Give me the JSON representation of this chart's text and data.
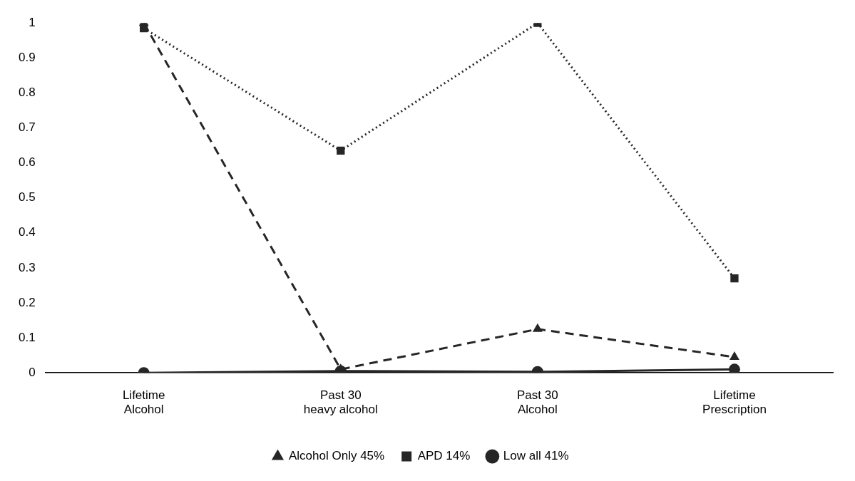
{
  "chart_data": {
    "type": "line",
    "categories": [
      "Lifetime\nAlcohol",
      "Past 30\nheavy alcohol",
      "Past 30\nAlcohol",
      "Lifetime\nPrescription"
    ],
    "series": [
      {
        "name": "Alcohol Only 45%",
        "color": "#262626",
        "values": [
          1.0,
          0.01,
          0.125,
          0.045
        ],
        "marker": "triangle",
        "line_style": "dashed"
      },
      {
        "name": "APD 14%",
        "color": "#262626",
        "values": [
          0.985,
          0.635,
          1.0,
          0.27
        ],
        "marker": "square",
        "line_style": "dotted"
      },
      {
        "name": "Low all 41%",
        "color": "#262626",
        "values": [
          0,
          0.005,
          0.003,
          0.01
        ],
        "marker": "circle",
        "line_style": "solid"
      }
    ],
    "ylim": [
      0,
      1
    ],
    "yticks": [
      0,
      0.1,
      0.2,
      0.3,
      0.4,
      0.5,
      0.6,
      0.7,
      0.8,
      0.9,
      1
    ],
    "grid": false,
    "legend": "bottom"
  }
}
